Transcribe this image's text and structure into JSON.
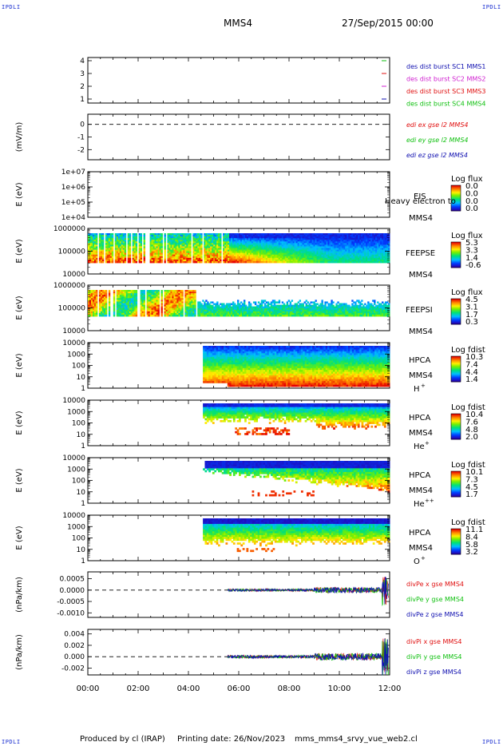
{
  "header": {
    "corner_tl": "IPDLI",
    "corner_tr": "IPDLI",
    "corner_bl": "IPDLI",
    "corner_br": "IPDLI",
    "spacecraft": "MMS4",
    "datetime": "27/Sep/2015 00:00"
  },
  "footer": {
    "produced_by": "Produced by cl (IRAP)",
    "printing_date": "Printing date: 26/Nov/2023",
    "filename": "mms_mms4_srvy_vue_web2.cl"
  },
  "colors": {
    "mms1": "#1010b0",
    "mms2": "#d020d0",
    "mms3": "#e01010",
    "mms4": "#10c010",
    "x": "#e01010",
    "y": "#10c010",
    "z": "#1010b0"
  },
  "chart_data": [
    {
      "id": "burst",
      "type": "line",
      "xlabel": "",
      "ylabel": "",
      "xlim": [
        "00:00",
        "12:00"
      ],
      "ylim": [
        0.6,
        4.4
      ],
      "y_ticks": [
        "1",
        "2",
        "3",
        "4"
      ],
      "legend": [
        "des dist burst SC1 MMS1",
        "des dist burst SC2 MMS2",
        "des dist burst SC3 MMS3",
        "des dist burst SC4 MMS4"
      ]
    },
    {
      "id": "edi",
      "type": "line",
      "ylabel": "(mV/m)",
      "ylim": [
        -2.8,
        0.8
      ],
      "y_ticks": [
        "0",
        "-1",
        "-2"
      ],
      "legend": [
        "edi ex gse l2 MMS4",
        "edi ey gse l2 MMS4",
        "edi ez gse l2 MMS4"
      ]
    },
    {
      "id": "eis",
      "type": "heatmap",
      "ylabel": "E (eV)",
      "y_scale": "log",
      "y_ticks": [
        "1e+07",
        "1e+06",
        "1e+05",
        "1e+04"
      ],
      "instrument": "EIS",
      "spacecraft": "MMS4",
      "note": "Heavy electron to",
      "colorbar_title": "Log flux",
      "colorbar_ticks": [
        "0.0",
        "0.0",
        "0.0",
        "0.0"
      ]
    },
    {
      "id": "feepse",
      "type": "heatmap",
      "ylabel": "E (eV)",
      "y_scale": "log",
      "y_ticks": [
        "1000000",
        "100000",
        "10000"
      ],
      "instrument": "FEEPSE",
      "spacecraft": "MMS4",
      "colorbar_title": "Log flux",
      "colorbar_ticks": [
        "5.3",
        "3.3",
        "1.4",
        "-0.6"
      ]
    },
    {
      "id": "feepsi",
      "type": "heatmap",
      "ylabel": "E (eV)",
      "y_scale": "log",
      "y_ticks": [
        "1000000",
        "100000",
        "10000"
      ],
      "instrument": "FEEPSI",
      "spacecraft": "MMS4",
      "colorbar_title": "Log flux",
      "colorbar_ticks": [
        "4.5",
        "3.1",
        "1.7",
        "0.3"
      ]
    },
    {
      "id": "hpca_h",
      "type": "heatmap",
      "ylabel": "E (eV)",
      "y_scale": "log",
      "y_ticks": [
        "10000",
        "1000",
        "100",
        "10",
        "1"
      ],
      "instrument": "HPCA",
      "spacecraft": "MMS4",
      "species": "H",
      "species_sup": "+",
      "colorbar_title": "Log fdist",
      "colorbar_ticks": [
        "10.3",
        "7.4",
        "4.4",
        "1.4"
      ]
    },
    {
      "id": "hpca_he",
      "type": "heatmap",
      "ylabel": "E (eV)",
      "y_scale": "log",
      "y_ticks": [
        "10000",
        "1000",
        "100",
        "10",
        "1"
      ],
      "instrument": "HPCA",
      "spacecraft": "MMS4",
      "species": "He",
      "species_sup": "+",
      "colorbar_title": "Log fdist",
      "colorbar_ticks": [
        "10.4",
        "7.6",
        "4.8",
        "2.0"
      ]
    },
    {
      "id": "hpca_he2",
      "type": "heatmap",
      "ylabel": "E (eV)",
      "y_scale": "log",
      "y_ticks": [
        "10000",
        "1000",
        "100",
        "10",
        "1"
      ],
      "instrument": "HPCA",
      "spacecraft": "MMS4",
      "species": "He",
      "species_sup": "++",
      "colorbar_title": "Log fdist",
      "colorbar_ticks": [
        "10.1",
        "7.3",
        "4.5",
        "1.7"
      ]
    },
    {
      "id": "hpca_o",
      "type": "heatmap",
      "ylabel": "E (eV)",
      "y_scale": "log",
      "y_ticks": [
        "10000",
        "1000",
        "100",
        "10",
        "1"
      ],
      "instrument": "HPCA",
      "spacecraft": "MMS4",
      "species": "O",
      "species_sup": "+",
      "colorbar_title": "Log fdist",
      "colorbar_ticks": [
        "11.1",
        "8.4",
        "5.8",
        "3.2"
      ]
    },
    {
      "id": "divpe",
      "type": "line",
      "ylabel": "(nPa/km)",
      "ylim": [
        -0.0012,
        0.0008
      ],
      "y_ticks": [
        "0.0005",
        "0.0000",
        "-0.0005",
        "-0.0010"
      ],
      "legend": [
        "divPe x gse MMS4",
        "divPe y gse MMS4",
        "divPe z gse MMS4"
      ]
    },
    {
      "id": "divpi",
      "type": "line",
      "ylabel": "(nPa/km)",
      "ylim": [
        -0.0032,
        0.0048
      ],
      "y_ticks": [
        "0.004",
        "0.002",
        "0.000",
        "-0.002"
      ],
      "legend": [
        "divPi x gse MMS4",
        "divPi y gse MMS4",
        "divPi z gse MMS4"
      ],
      "x_ticks": [
        "00:00",
        "02:00",
        "04:00",
        "06:00",
        "08:00",
        "10:00",
        "12:00"
      ]
    }
  ]
}
